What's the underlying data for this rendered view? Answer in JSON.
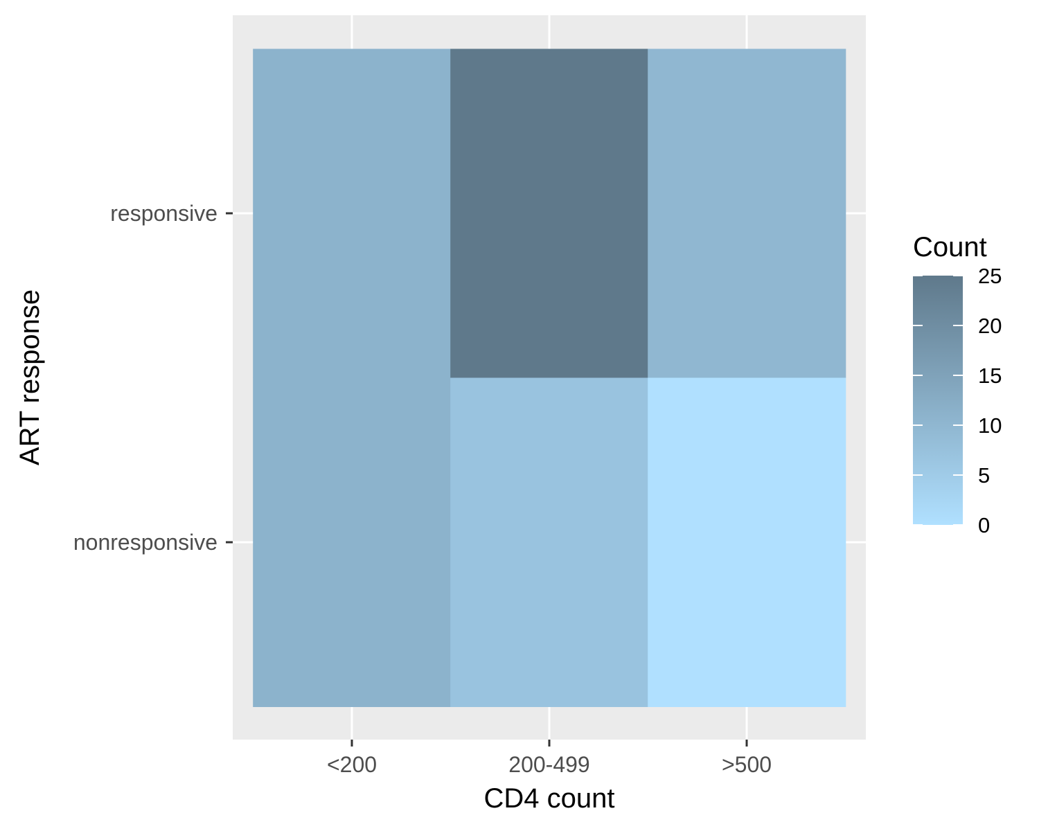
{
  "chart_data": {
    "type": "heatmap",
    "x_categories": [
      "<200",
      "200-499",
      ">500"
    ],
    "y_categories": [
      "nonresponsive",
      "responsive"
    ],
    "cells": [
      {
        "x": "<200",
        "y": "responsive",
        "value": 11
      },
      {
        "x": "<200",
        "y": "nonresponsive",
        "value": 11
      },
      {
        "x": "200-499",
        "y": "responsive",
        "value": 25
      },
      {
        "x": "200-499",
        "y": "nonresponsive",
        "value": 7
      },
      {
        "x": ">500",
        "y": "responsive",
        "value": 10
      },
      {
        "x": ">500",
        "y": "nonresponsive",
        "value": 0
      }
    ],
    "xlabel": "CD4 count",
    "ylabel": "ART response",
    "legend": {
      "title": "Count",
      "ticks": [
        0,
        5,
        10,
        15,
        20,
        25
      ],
      "range": [
        0,
        25
      ],
      "low_color": "#b0e0ff",
      "high_color": "#5f798b"
    },
    "panel_background": "#ebebeb",
    "gridline_color": "#ffffff"
  }
}
